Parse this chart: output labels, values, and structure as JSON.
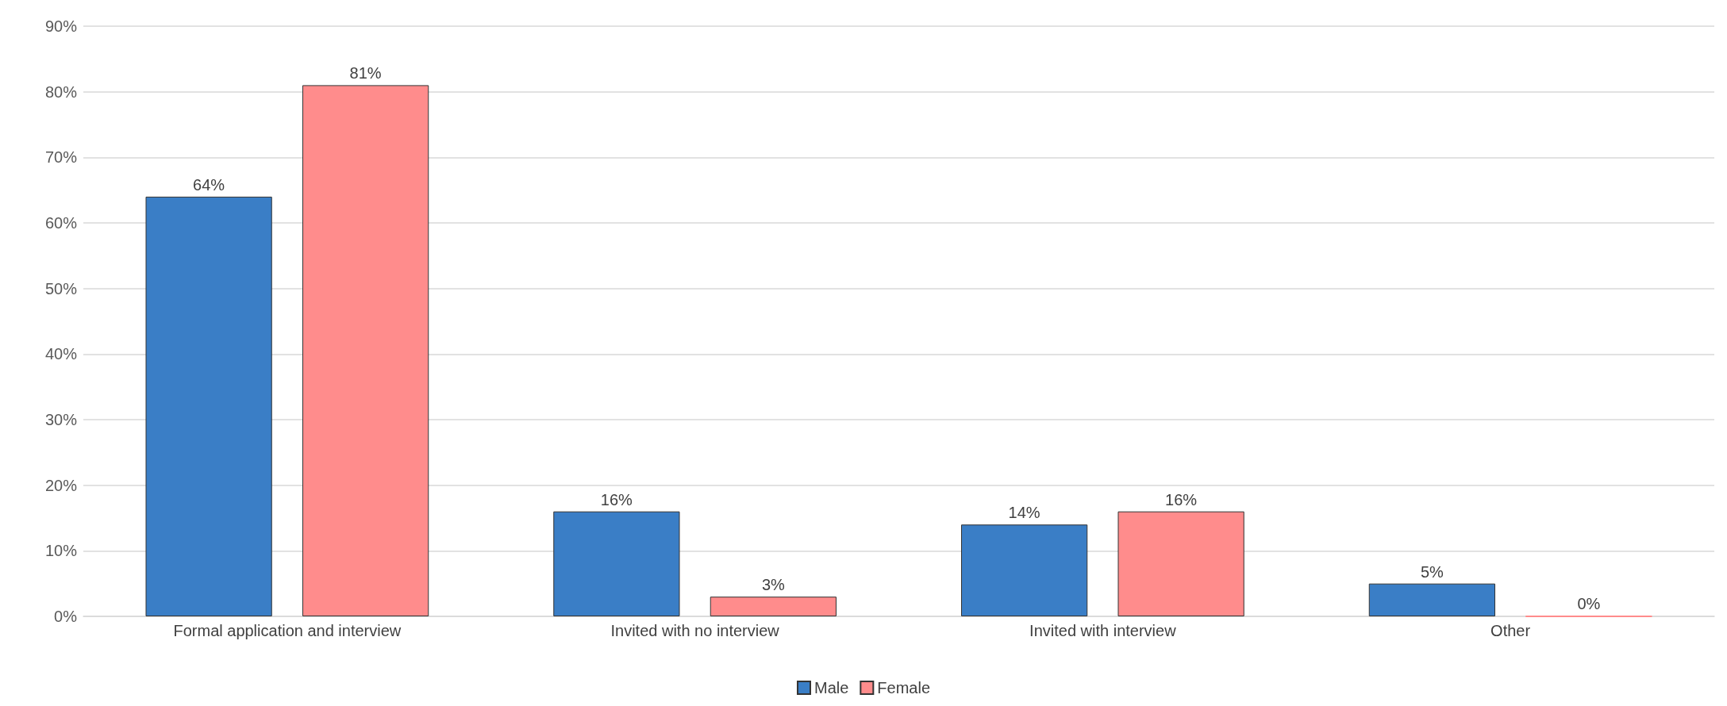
{
  "chart_data": {
    "type": "bar",
    "categories": [
      "Formal application and interview",
      "Invited with no interview",
      "Invited with interview",
      "Other"
    ],
    "series": [
      {
        "name": "Male",
        "color": "#3a7ec6",
        "values": [
          64,
          16,
          14,
          5
        ],
        "value_labels": [
          "64%",
          "16%",
          "14%",
          "5%"
        ]
      },
      {
        "name": "Female",
        "color": "#ff8c8c",
        "values": [
          81,
          3,
          16,
          0
        ],
        "value_labels": [
          "81%",
          "3%",
          "16%",
          "0%"
        ]
      }
    ],
    "ylim": [
      0,
      90
    ],
    "yticks": [
      {
        "value": 0,
        "label": "0%"
      },
      {
        "value": 10,
        "label": "10%"
      },
      {
        "value": 20,
        "label": "20%"
      },
      {
        "value": 30,
        "label": "30%"
      },
      {
        "value": 40,
        "label": "40%"
      },
      {
        "value": 50,
        "label": "50%"
      },
      {
        "value": 60,
        "label": "60%"
      },
      {
        "value": 70,
        "label": "70%"
      },
      {
        "value": 80,
        "label": "80%"
      },
      {
        "value": 90,
        "label": "90%"
      }
    ],
    "grid": "y",
    "legend": "bottom"
  }
}
